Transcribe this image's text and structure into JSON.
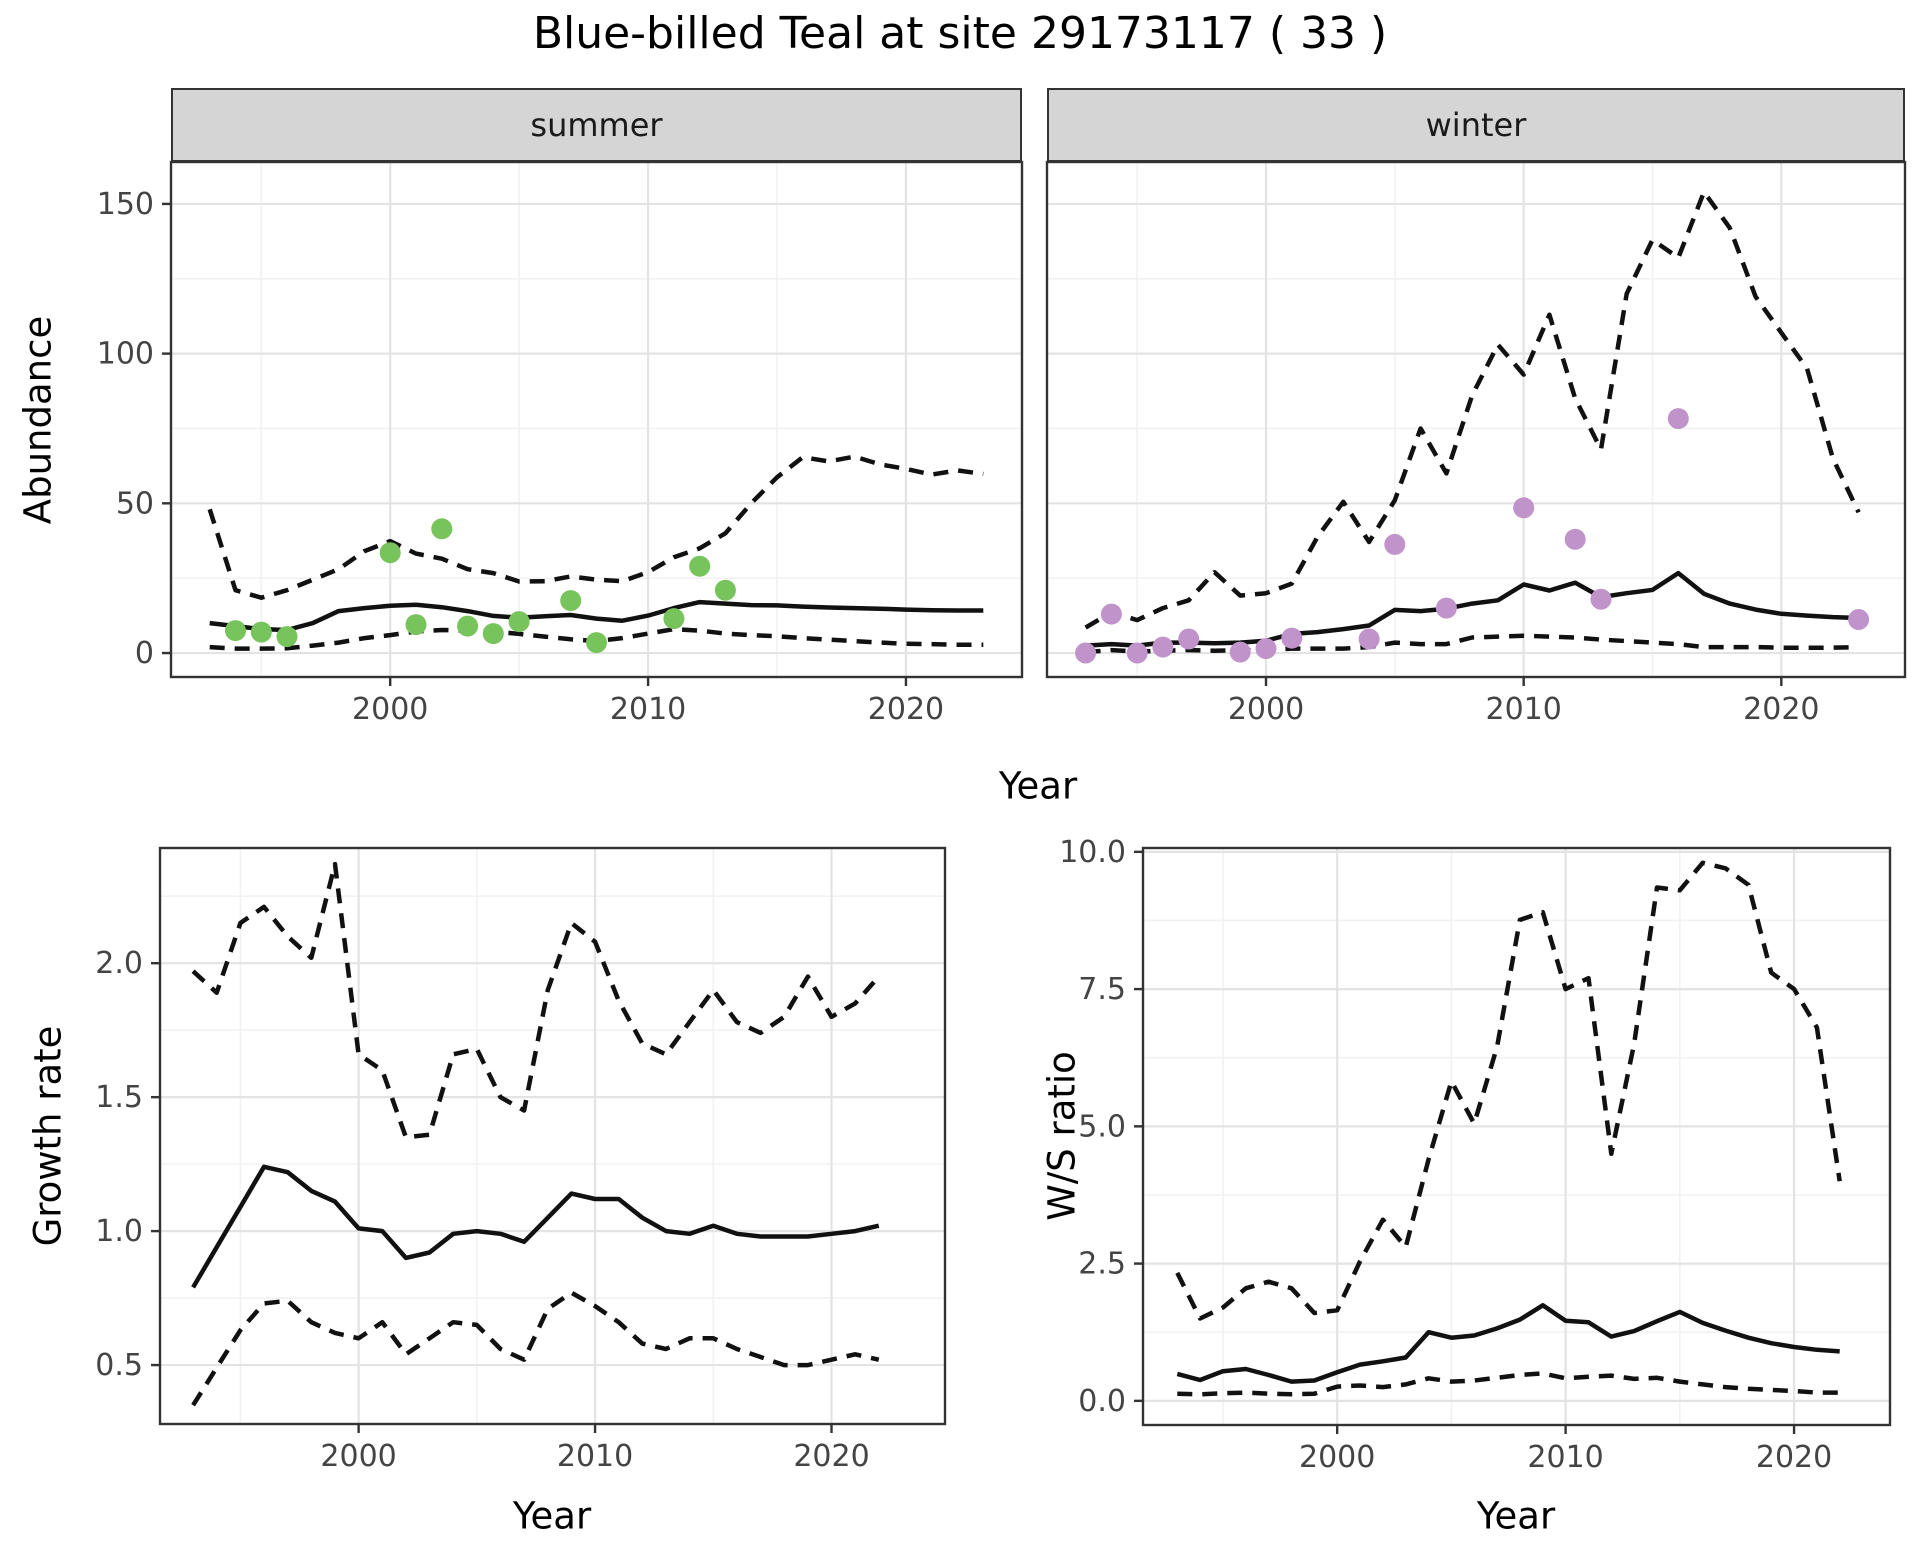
{
  "title": "Blue-billed Teal at site 29173117 ( 33 )",
  "colors": {
    "summer_points": "#77C35C",
    "winter_points": "#C094CB",
    "line": "#111111",
    "grid_major": "#e3e3e3",
    "grid_minor": "#f2f2f2",
    "panel_border": "#333333",
    "strip_bg": "#d5d5d5",
    "tick_text": "#444444"
  },
  "chart_data": [
    {
      "id": "abundance-summer",
      "type": "line",
      "title": "summer",
      "xlabel": "Year",
      "ylabel": "Abundance",
      "xlim": [
        1991.5,
        2024.5
      ],
      "ylim": [
        -8,
        164
      ],
      "grid": true,
      "legend": "none",
      "x_ticks": {
        "values": [
          2000,
          2010,
          2020
        ],
        "labels": [
          "2000",
          "2010",
          "2020"
        ],
        "minor": [
          1995,
          2005,
          2015
        ]
      },
      "y_ticks": {
        "values": [
          0,
          50,
          100,
          150
        ],
        "labels": [
          "0",
          "50",
          "100",
          "150"
        ],
        "minor": [
          25,
          75,
          125
        ]
      },
      "series": [
        {
          "name": "median",
          "style": "solid",
          "x": [
            1993,
            1994,
            1995,
            1996,
            1997,
            1998,
            1999,
            2000,
            2001,
            2002,
            2003,
            2004,
            2005,
            2006,
            2007,
            2008,
            2009,
            2010,
            2011,
            2012,
            2013,
            2014,
            2015,
            2016,
            2017,
            2018,
            2019,
            2020,
            2021,
            2022,
            2023
          ],
          "values": [
            10,
            9,
            8,
            7.7,
            10,
            14,
            15,
            15.8,
            16.1,
            15.3,
            14,
            12.4,
            11.8,
            12.3,
            12.7,
            11.5,
            10.8,
            12.5,
            15,
            17,
            16.5,
            16,
            15.9,
            15.5,
            15.2,
            15,
            14.8,
            14.5,
            14.3,
            14.2,
            14.2
          ]
        },
        {
          "name": "upper-95ci",
          "style": "dashed",
          "x": [
            1993,
            1994,
            1995,
            1996,
            1997,
            1998,
            1999,
            2000,
            2001,
            2002,
            2003,
            2004,
            2005,
            2006,
            2007,
            2008,
            2009,
            2010,
            2011,
            2012,
            2013,
            2014,
            2015,
            2016,
            2017,
            2018,
            2019,
            2020,
            2021,
            2022,
            2023
          ],
          "values": [
            48,
            21,
            18.5,
            21,
            24.5,
            28,
            34,
            37.4,
            33.2,
            31.5,
            28,
            26.7,
            23.9,
            24,
            25.6,
            24.5,
            24,
            27,
            32,
            35,
            40,
            50,
            58.7,
            65.4,
            64,
            65.6,
            63,
            61.5,
            59.6,
            61,
            59.8
          ]
        },
        {
          "name": "lower-95ci",
          "style": "dashed",
          "x": [
            1993,
            1994,
            1995,
            1996,
            1997,
            1998,
            1999,
            2000,
            2001,
            2002,
            2003,
            2004,
            2005,
            2006,
            2007,
            2008,
            2009,
            2010,
            2011,
            2012,
            2013,
            2014,
            2015,
            2016,
            2017,
            2018,
            2019,
            2020,
            2021,
            2022,
            2023
          ],
          "values": [
            2,
            1.5,
            1.5,
            1.6,
            2.5,
            3.5,
            5,
            6,
            7.2,
            7.7,
            7.5,
            7.2,
            6.4,
            5.5,
            4.6,
            4,
            5,
            6.5,
            8,
            7.5,
            6.5,
            6,
            5.6,
            5,
            4.5,
            4,
            3.5,
            3.1,
            3,
            2.8,
            2.8
          ]
        }
      ],
      "points": {
        "name": "observed-counts",
        "color": "#77C35C",
        "x": [
          1994,
          1995,
          1996,
          2000,
          2001,
          2002,
          2003,
          2004,
          2005,
          2007,
          2008,
          2011,
          2012,
          2013
        ],
        "values": [
          7.5,
          7,
          5.5,
          33.5,
          9.5,
          41.5,
          9,
          6.5,
          10.5,
          17.5,
          3.5,
          11.5,
          29,
          21
        ]
      }
    },
    {
      "id": "abundance-winter",
      "type": "line",
      "title": "winter",
      "xlabel": "Year",
      "ylabel": "Abundance",
      "xlim": [
        1991.5,
        2024.8
      ],
      "ylim": [
        -8,
        164
      ],
      "grid": true,
      "legend": "none",
      "x_ticks": {
        "values": [
          2000,
          2010,
          2020
        ],
        "labels": [
          "2000",
          "2010",
          "2020"
        ],
        "minor": [
          1995,
          2005,
          2015
        ]
      },
      "y_ticks": {
        "values": [
          0,
          50,
          100,
          150
        ],
        "labels": [
          "0",
          "50",
          "100",
          "150"
        ],
        "minor": [
          25,
          75,
          125
        ]
      },
      "series": [
        {
          "name": "median",
          "style": "solid",
          "x": [
            1993,
            1994,
            1995,
            1996,
            1997,
            1998,
            1999,
            2000,
            2001,
            2002,
            2003,
            2004,
            2005,
            2006,
            2007,
            2008,
            2009,
            2010,
            2011,
            2012,
            2013,
            2014,
            2015,
            2016,
            2017,
            2018,
            2019,
            2020,
            2021,
            2022,
            2023
          ],
          "values": [
            2.5,
            3,
            2.5,
            3.5,
            3.5,
            3.3,
            3.5,
            4.1,
            6.4,
            7,
            8,
            9.2,
            14.4,
            14,
            14.8,
            16.5,
            17.6,
            22.9,
            20.9,
            23.5,
            18.7,
            20,
            21.1,
            26.7,
            19.8,
            16.5,
            14.5,
            13.1,
            12.5,
            12,
            11.7
          ]
        },
        {
          "name": "upper-95ci",
          "style": "dashed",
          "x": [
            1993,
            1994,
            1995,
            1996,
            1997,
            1998,
            1999,
            2000,
            2001,
            2002,
            2003,
            2004,
            2005,
            2006,
            2007,
            2008,
            2009,
            2010,
            2011,
            2012,
            2013,
            2014,
            2015,
            2016,
            2017,
            2018,
            2019,
            2020,
            2021,
            2022,
            2023
          ],
          "values": [
            8.5,
            13.6,
            11,
            15,
            17.6,
            27,
            19.2,
            20,
            23.2,
            38.8,
            50.5,
            37.1,
            51,
            75,
            60,
            86,
            103,
            93,
            113,
            85,
            68,
            120,
            138,
            132,
            154,
            142,
            119,
            107,
            95,
            65,
            47
          ]
        },
        {
          "name": "lower-95ci",
          "style": "dashed",
          "x": [
            1993,
            1994,
            1995,
            1996,
            1997,
            1998,
            1999,
            2000,
            2001,
            2002,
            2003,
            2004,
            2005,
            2006,
            2007,
            2008,
            2009,
            2010,
            2011,
            2012,
            2013,
            2014,
            2015,
            2016,
            2017,
            2018,
            2019,
            2020,
            2021,
            2022,
            2023
          ],
          "values": [
            0.3,
            1,
            0.5,
            0.8,
            1,
            0.8,
            1,
            1,
            1.5,
            1.5,
            1.5,
            2,
            3.5,
            3,
            3,
            5.2,
            5.5,
            5.8,
            5.5,
            5.2,
            4.5,
            4,
            3.5,
            3,
            2,
            2,
            2,
            1.8,
            1.8,
            1.8,
            2
          ]
        }
      ],
      "points": {
        "name": "observed-counts",
        "color": "#C094CB",
        "x": [
          1993,
          1994,
          1995,
          1996,
          1997,
          1999,
          2000,
          2001,
          2004,
          2005,
          2007,
          2010,
          2012,
          2013,
          2016,
          2023
        ],
        "values": [
          0,
          13,
          0,
          2,
          4.7,
          0.3,
          1.5,
          5,
          4.7,
          36.3,
          15,
          48.5,
          38,
          18,
          78.3,
          11.2
        ]
      }
    },
    {
      "id": "growth-rate",
      "type": "line",
      "title": "",
      "xlabel": "Year",
      "ylabel": "Growth rate",
      "xlim": [
        1991.6,
        2024.8
      ],
      "ylim": [
        0.28,
        2.43
      ],
      "grid": true,
      "legend": "none",
      "x_ticks": {
        "values": [
          2000,
          2010,
          2020
        ],
        "labels": [
          "2000",
          "2010",
          "2020"
        ],
        "minor": [
          1995,
          2005,
          2015
        ]
      },
      "y_ticks": {
        "values": [
          0.5,
          1.0,
          1.5,
          2.0
        ],
        "labels": [
          "0.5",
          "1.0",
          "1.5",
          "2.0"
        ],
        "minor": [
          0.75,
          1.25,
          1.75,
          2.25
        ]
      },
      "series": [
        {
          "name": "median",
          "style": "solid",
          "x": [
            1993,
            1994,
            1995,
            1996,
            1997,
            1998,
            1999,
            2000,
            2001,
            2002,
            2003,
            2004,
            2005,
            2006,
            2007,
            2008,
            2009,
            2010,
            2011,
            2012,
            2013,
            2014,
            2015,
            2016,
            2017,
            2018,
            2019,
            2020,
            2021,
            2022
          ],
          "values": [
            0.79,
            0.94,
            1.09,
            1.24,
            1.22,
            1.15,
            1.11,
            1.01,
            1.0,
            0.9,
            0.92,
            0.99,
            1.0,
            0.99,
            0.96,
            1.05,
            1.14,
            1.12,
            1.12,
            1.05,
            1.0,
            0.99,
            1.02,
            0.99,
            0.98,
            0.98,
            0.98,
            0.99,
            1.0,
            1.02
          ]
        },
        {
          "name": "upper-95ci",
          "style": "dashed",
          "x": [
            1993,
            1994,
            1995,
            1996,
            1997,
            1998,
            1999,
            2000,
            2001,
            2002,
            2003,
            2004,
            2005,
            2006,
            2007,
            2008,
            2009,
            2010,
            2011,
            2012,
            2013,
            2014,
            2015,
            2016,
            2017,
            2018,
            2019,
            2020,
            2021,
            2022
          ],
          "values": [
            1.97,
            1.89,
            2.15,
            2.21,
            2.1,
            2.02,
            2.37,
            1.66,
            1.6,
            1.35,
            1.36,
            1.66,
            1.68,
            1.5,
            1.45,
            1.9,
            2.15,
            2.08,
            1.86,
            1.7,
            1.66,
            1.78,
            1.9,
            1.78,
            1.74,
            1.8,
            1.95,
            1.8,
            1.85,
            1.95
          ]
        },
        {
          "name": "lower-95ci",
          "style": "dashed",
          "x": [
            1993,
            1994,
            1995,
            1996,
            1997,
            1998,
            1999,
            2000,
            2001,
            2002,
            2003,
            2004,
            2005,
            2006,
            2007,
            2008,
            2009,
            2010,
            2011,
            2012,
            2013,
            2014,
            2015,
            2016,
            2017,
            2018,
            2019,
            2020,
            2021,
            2022
          ],
          "values": [
            0.35,
            0.49,
            0.63,
            0.73,
            0.74,
            0.66,
            0.62,
            0.6,
            0.66,
            0.54,
            0.6,
            0.66,
            0.65,
            0.56,
            0.52,
            0.71,
            0.77,
            0.72,
            0.66,
            0.58,
            0.56,
            0.6,
            0.6,
            0.56,
            0.53,
            0.5,
            0.5,
            0.52,
            0.54,
            0.52
          ]
        }
      ]
    },
    {
      "id": "ws-ratio",
      "type": "line",
      "title": "",
      "xlabel": "Year",
      "ylabel": "W/S ratio",
      "xlim": [
        1991.5,
        2024.2
      ],
      "ylim": [
        -0.44,
        10.07
      ],
      "grid": true,
      "legend": "none",
      "x_ticks": {
        "values": [
          2000,
          2010,
          2020
        ],
        "labels": [
          "2000",
          "2010",
          "2020"
        ],
        "minor": [
          1995,
          2005,
          2015
        ]
      },
      "y_ticks": {
        "values": [
          0.0,
          2.5,
          5.0,
          7.5,
          10.0
        ],
        "labels": [
          "0.0",
          "2.5",
          "5.0",
          "7.5",
          "10.0"
        ],
        "minor": [
          1.25,
          3.75,
          6.25,
          8.75
        ]
      },
      "series": [
        {
          "name": "median",
          "style": "solid",
          "x": [
            1993,
            1994,
            1995,
            1996,
            1997,
            1998,
            1999,
            2000,
            2001,
            2002,
            2003,
            2004,
            2005,
            2006,
            2007,
            2008,
            2009,
            2010,
            2011,
            2012,
            2013,
            2014,
            2015,
            2016,
            2017,
            2018,
            2019,
            2020,
            2021,
            2022
          ],
          "values": [
            0.49,
            0.38,
            0.54,
            0.58,
            0.47,
            0.35,
            0.37,
            0.52,
            0.66,
            0.72,
            0.79,
            1.25,
            1.15,
            1.19,
            1.32,
            1.48,
            1.74,
            1.46,
            1.43,
            1.17,
            1.27,
            1.45,
            1.62,
            1.42,
            1.28,
            1.15,
            1.05,
            0.98,
            0.93,
            0.9
          ]
        },
        {
          "name": "upper-95ci",
          "style": "dashed",
          "x": [
            1993,
            1994,
            1995,
            1996,
            1997,
            1998,
            1999,
            2000,
            2001,
            2002,
            2003,
            2004,
            2005,
            2006,
            2007,
            2008,
            2009,
            2010,
            2011,
            2012,
            2013,
            2014,
            2015,
            2016,
            2017,
            2018,
            2019,
            2020,
            2021,
            2022
          ],
          "values": [
            2.33,
            1.5,
            1.7,
            2.05,
            2.17,
            2.05,
            1.6,
            1.65,
            2.54,
            3.3,
            2.8,
            4.4,
            5.82,
            5.05,
            6.45,
            8.76,
            8.9,
            7.5,
            7.7,
            4.5,
            6.5,
            9.35,
            9.3,
            9.8,
            9.7,
            9.4,
            7.8,
            7.5,
            6.8,
            4.0
          ]
        },
        {
          "name": "lower-95ci",
          "style": "dashed",
          "x": [
            1993,
            1994,
            1995,
            1996,
            1997,
            1998,
            1999,
            2000,
            2001,
            2002,
            2003,
            2004,
            2005,
            2006,
            2007,
            2008,
            2009,
            2010,
            2011,
            2012,
            2013,
            2014,
            2015,
            2016,
            2017,
            2018,
            2019,
            2020,
            2021,
            2022
          ],
          "values": [
            0.13,
            0.12,
            0.14,
            0.15,
            0.13,
            0.12,
            0.13,
            0.26,
            0.28,
            0.25,
            0.3,
            0.41,
            0.35,
            0.37,
            0.42,
            0.47,
            0.5,
            0.41,
            0.44,
            0.46,
            0.4,
            0.42,
            0.35,
            0.3,
            0.25,
            0.22,
            0.2,
            0.18,
            0.15,
            0.15
          ]
        }
      ]
    }
  ]
}
